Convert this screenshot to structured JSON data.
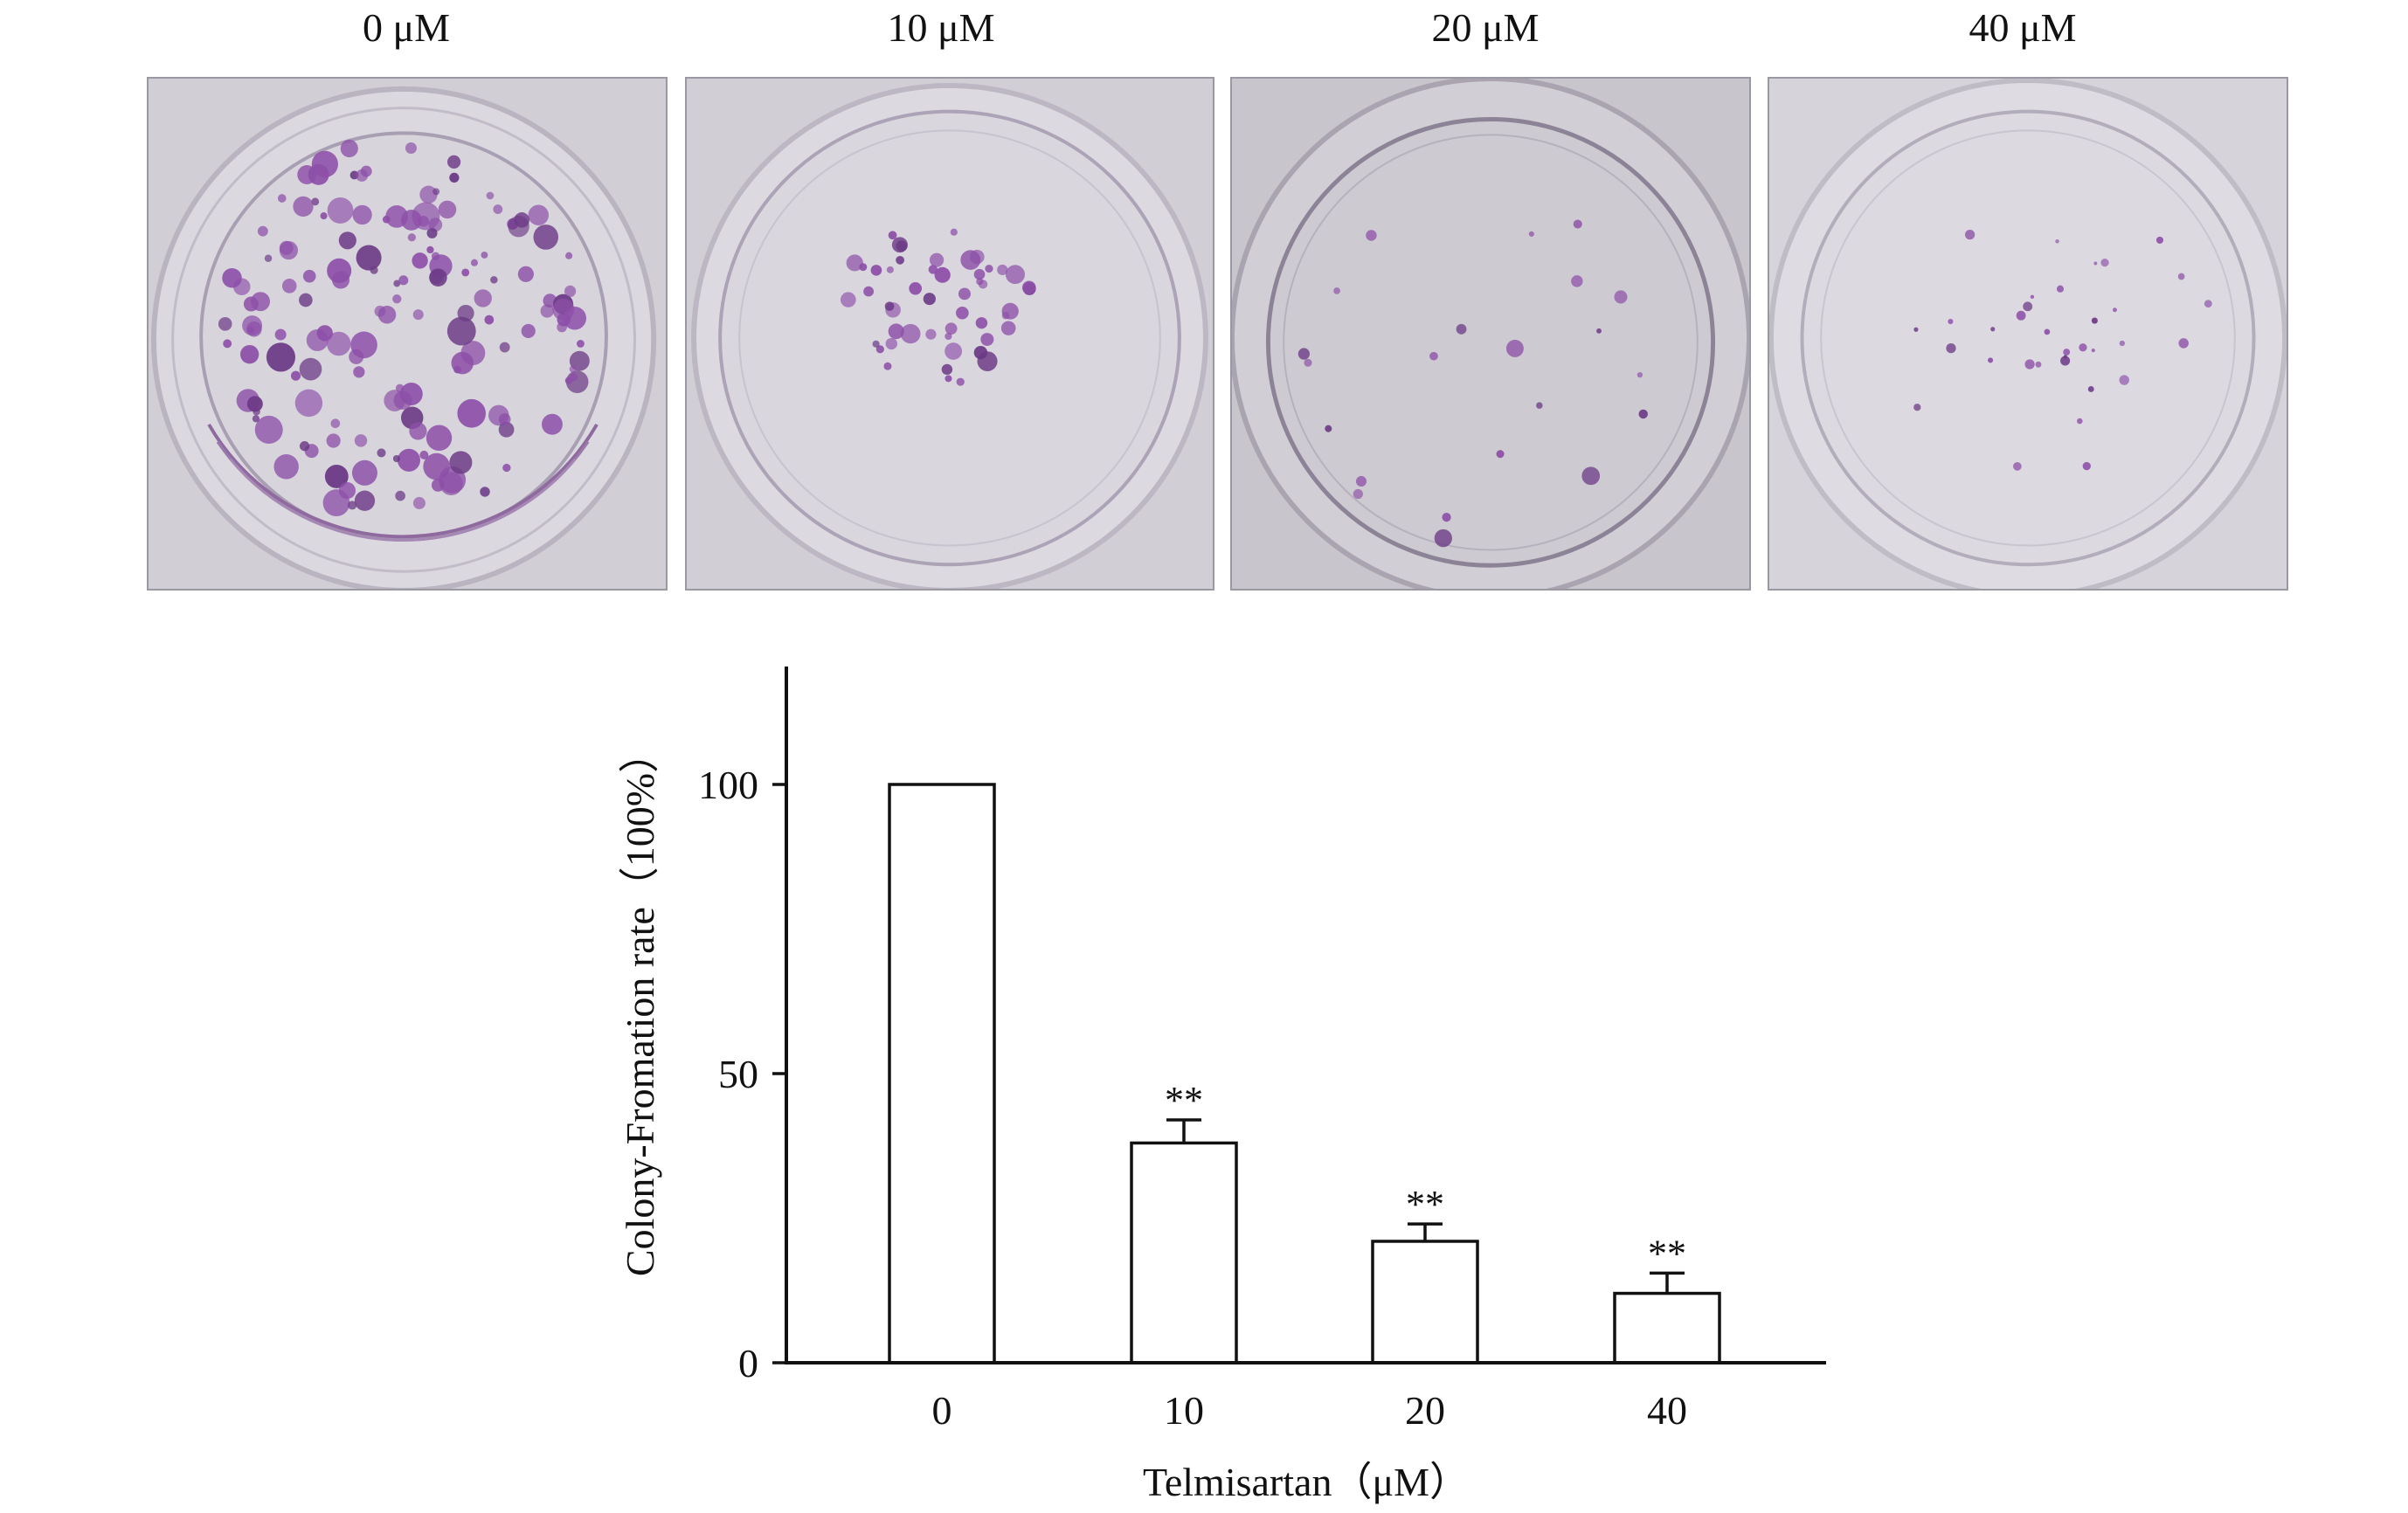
{
  "panels": [
    {
      "label": "0 μM",
      "colony_density": "high"
    },
    {
      "label": "10 μM",
      "colony_density": "medium"
    },
    {
      "label": "20 μM",
      "colony_density": "low"
    },
    {
      "label": "40 μM",
      "colony_density": "very-low"
    }
  ],
  "colors": {
    "stain": "#8d4fa8",
    "stain_dark": "#6c3a86",
    "plate_bg": "#cfcbd3",
    "axis": "#111111",
    "bar_fill": "#ffffff",
    "bar_stroke": "#111111"
  },
  "chart_data": {
    "type": "bar",
    "categories": [
      "0",
      "10",
      "20",
      "40"
    ],
    "values": [
      100,
      38,
      21,
      12
    ],
    "error": [
      0,
      4,
      3,
      3.5
    ],
    "significance": [
      "",
      "**",
      "**",
      "**"
    ],
    "title": "",
    "xlabel": "Telmisartan（μM）",
    "ylabel": "Colony-Fromation rate（100%）",
    "ylim": [
      0,
      120
    ],
    "yticks": [
      0,
      50,
      100
    ],
    "grid": false,
    "legend": "none"
  }
}
